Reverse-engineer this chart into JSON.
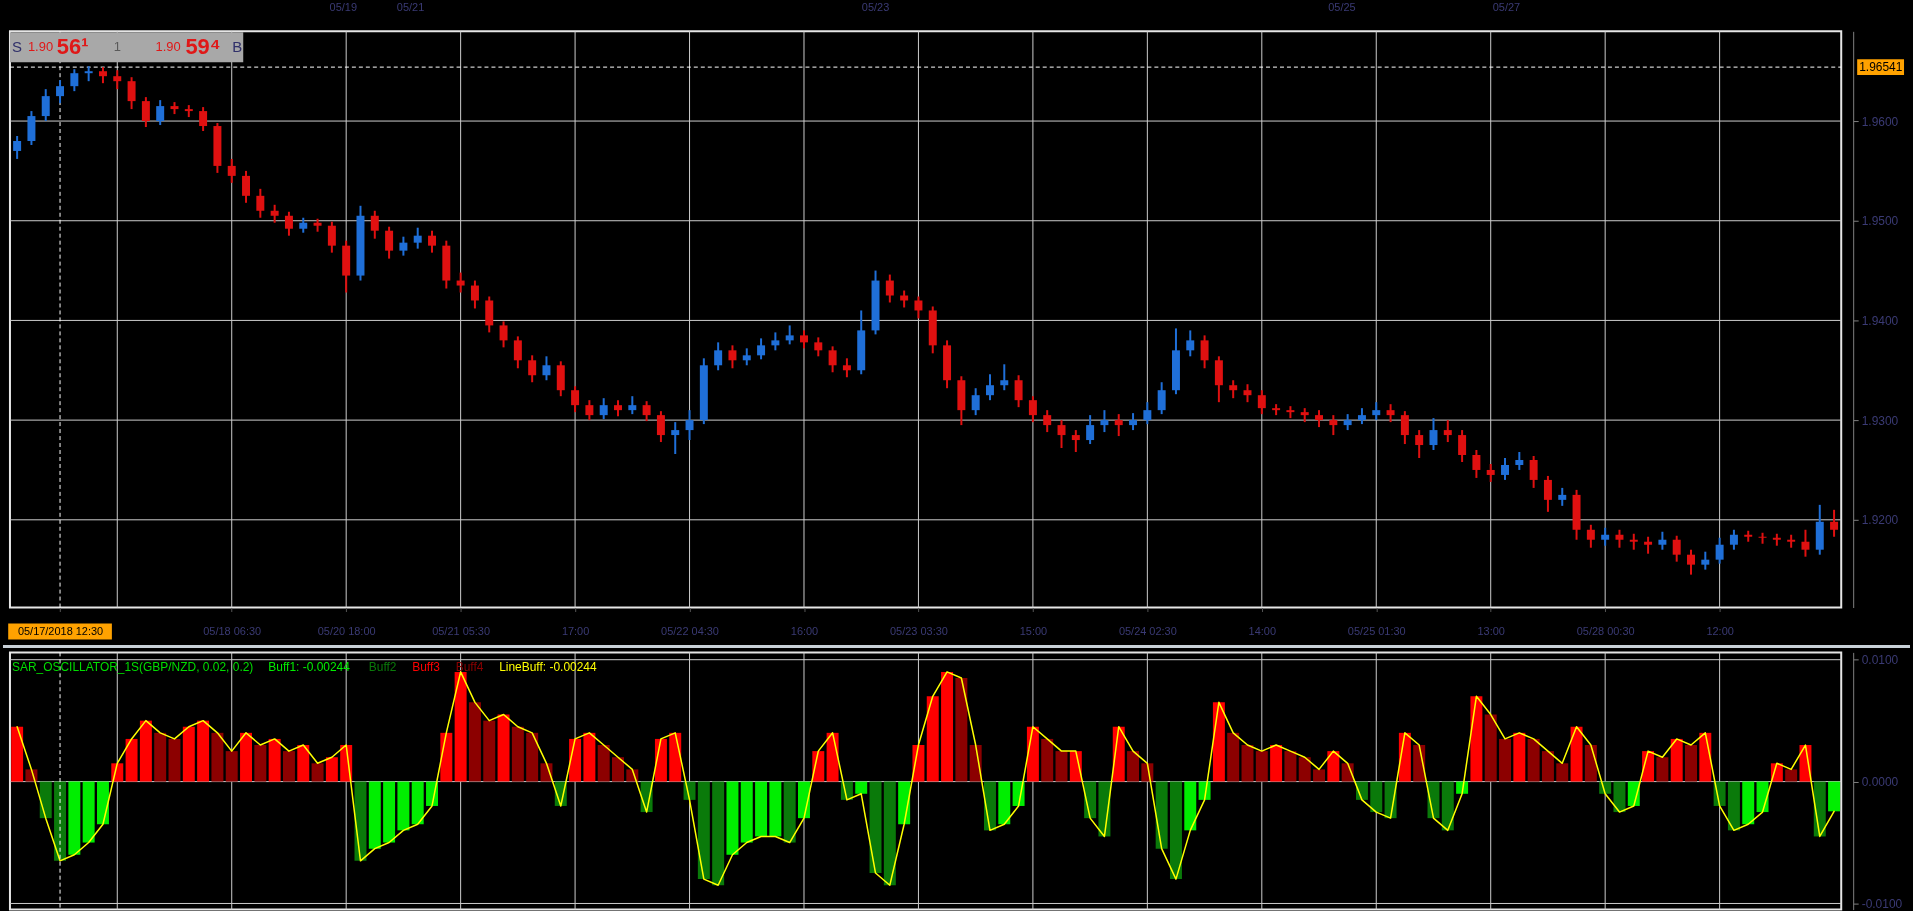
{
  "chart_data": [
    {
      "type": "candlestick",
      "categories": [
        null,
        null,
        null,
        "05/17/2018 12:30",
        null,
        null,
        null,
        null,
        null,
        null,
        null,
        null,
        null,
        null,
        null,
        "05/18 06:30",
        null,
        null,
        null,
        null,
        null,
        null,
        null,
        "05/20 18:00",
        null,
        null,
        null,
        null,
        null,
        null,
        null,
        "05/21 05:30",
        null,
        null,
        null,
        null,
        null,
        null,
        null,
        "17:00",
        null,
        null,
        null,
        null,
        null,
        null,
        null,
        "05/22 04:30",
        null,
        null,
        null,
        null,
        null,
        null,
        null,
        "16:00",
        null,
        null,
        null,
        null,
        null,
        null,
        null,
        "05/23 03:30",
        null,
        null,
        null,
        null,
        null,
        null,
        null,
        "15:00",
        null,
        null,
        null,
        null,
        null,
        null,
        null,
        "05/24 02:30",
        null,
        null,
        null,
        null,
        null,
        null,
        null,
        "14:00",
        null,
        null,
        null,
        null,
        null,
        null,
        null,
        "05/25 01:30",
        null,
        null,
        null,
        null,
        null,
        null,
        null,
        "13:00",
        null,
        null,
        null,
        null,
        null,
        null,
        null,
        "05/28 00:30",
        null,
        null,
        null,
        null,
        null,
        null,
        null,
        "12:00",
        null,
        null,
        null,
        null,
        null,
        null,
        null,
        null
      ],
      "ohlc": [
        [
          1.957,
          1.9585,
          1.9562,
          1.958
        ],
        [
          1.958,
          1.961,
          1.9576,
          1.9605
        ],
        [
          1.9605,
          1.9632,
          1.96,
          1.9625
        ],
        [
          1.9625,
          1.9641,
          1.9618,
          1.9635
        ],
        [
          1.9635,
          1.9652,
          1.963,
          1.9648
        ],
        [
          1.9648,
          1.9655,
          1.964,
          1.965
        ],
        [
          1.965,
          1.9654,
          1.9638,
          1.9645
        ],
        [
          1.9645,
          1.9651,
          1.9632,
          1.964
        ],
        [
          1.964,
          1.9644,
          1.9612,
          1.962
        ],
        [
          1.962,
          1.9624,
          1.9594,
          1.96
        ],
        [
          1.96,
          1.9621,
          1.9596,
          1.9615
        ],
        [
          1.9615,
          1.9619,
          1.9607,
          1.9612
        ],
        [
          1.9612,
          1.9616,
          1.9604,
          1.961
        ],
        [
          1.961,
          1.9614,
          1.959,
          1.9595
        ],
        [
          1.9595,
          1.9598,
          1.9548,
          1.9555
        ],
        [
          1.9555,
          1.9562,
          1.9538,
          1.9545
        ],
        [
          1.9545,
          1.955,
          1.9518,
          1.9525
        ],
        [
          1.9525,
          1.9532,
          1.9503,
          1.951
        ],
        [
          1.951,
          1.9516,
          1.9498,
          1.9505
        ],
        [
          1.9505,
          1.9509,
          1.9485,
          1.9492
        ],
        [
          1.9492,
          1.9503,
          1.9488,
          1.9498
        ],
        [
          1.9498,
          1.9502,
          1.9489,
          1.9495
        ],
        [
          1.9495,
          1.9499,
          1.9468,
          1.9475
        ],
        [
          1.9475,
          1.948,
          1.9428,
          1.9445
        ],
        [
          1.9445,
          1.9515,
          1.944,
          1.9505
        ],
        [
          1.9505,
          1.951,
          1.9482,
          1.949
        ],
        [
          1.949,
          1.9494,
          1.9462,
          1.947
        ],
        [
          1.947,
          1.9484,
          1.9465,
          1.9478
        ],
        [
          1.9478,
          1.9493,
          1.9472,
          1.9485
        ],
        [
          1.9485,
          1.949,
          1.9468,
          1.9475
        ],
        [
          1.9475,
          1.948,
          1.9432,
          1.944
        ],
        [
          1.944,
          1.9448,
          1.9428,
          1.9435
        ],
        [
          1.9435,
          1.944,
          1.9412,
          1.942
        ],
        [
          1.942,
          1.9424,
          1.9388,
          1.9395
        ],
        [
          1.9395,
          1.9399,
          1.9373,
          1.938
        ],
        [
          1.938,
          1.9384,
          1.9352,
          1.936
        ],
        [
          1.936,
          1.9365,
          1.9338,
          1.9345
        ],
        [
          1.9345,
          1.9364,
          1.934,
          1.9355
        ],
        [
          1.9355,
          1.9359,
          1.9324,
          1.933
        ],
        [
          1.933,
          1.9334,
          1.9308,
          1.9315
        ],
        [
          1.9315,
          1.932,
          1.93,
          1.9305
        ],
        [
          1.9305,
          1.9322,
          1.9301,
          1.9315
        ],
        [
          1.9315,
          1.932,
          1.9304,
          1.931
        ],
        [
          1.931,
          1.9324,
          1.9306,
          1.9315
        ],
        [
          1.9315,
          1.9319,
          1.9299,
          1.9305
        ],
        [
          1.9305,
          1.9309,
          1.9278,
          1.9285
        ],
        [
          1.9285,
          1.9298,
          1.9266,
          1.929
        ],
        [
          1.929,
          1.931,
          1.928,
          1.93
        ],
        [
          1.93,
          1.9362,
          1.9296,
          1.9355
        ],
        [
          1.9355,
          1.9378,
          1.935,
          1.937
        ],
        [
          1.937,
          1.9375,
          1.9352,
          1.936
        ],
        [
          1.936,
          1.9372,
          1.9355,
          1.9365
        ],
        [
          1.9365,
          1.9382,
          1.9361,
          1.9375
        ],
        [
          1.9375,
          1.9388,
          1.937,
          1.938
        ],
        [
          1.938,
          1.9395,
          1.9376,
          1.9385
        ],
        [
          1.9385,
          1.939,
          1.9372,
          1.9378
        ],
        [
          1.9378,
          1.9383,
          1.9364,
          1.937
        ],
        [
          1.937,
          1.9374,
          1.9348,
          1.9355
        ],
        [
          1.9355,
          1.9362,
          1.9343,
          1.935
        ],
        [
          1.935,
          1.941,
          1.9346,
          1.939
        ],
        [
          1.939,
          1.945,
          1.9386,
          1.944
        ],
        [
          1.944,
          1.9446,
          1.9418,
          1.9425
        ],
        [
          1.9425,
          1.943,
          1.9413,
          1.942
        ],
        [
          1.942,
          1.9424,
          1.9402,
          1.941
        ],
        [
          1.941,
          1.9414,
          1.9367,
          1.9375
        ],
        [
          1.9375,
          1.938,
          1.9332,
          1.934
        ],
        [
          1.934,
          1.9344,
          1.9295,
          1.931
        ],
        [
          1.931,
          1.9332,
          1.9305,
          1.9325
        ],
        [
          1.9325,
          1.9346,
          1.932,
          1.9335
        ],
        [
          1.9335,
          1.9356,
          1.933,
          1.934
        ],
        [
          1.934,
          1.9345,
          1.9313,
          1.932
        ],
        [
          1.932,
          1.9324,
          1.9298,
          1.9305
        ],
        [
          1.9305,
          1.931,
          1.9288,
          1.9295
        ],
        [
          1.9295,
          1.93,
          1.9272,
          1.9285
        ],
        [
          1.9285,
          1.929,
          1.9268,
          1.928
        ],
        [
          1.928,
          1.9305,
          1.9276,
          1.9295
        ],
        [
          1.9295,
          1.931,
          1.9288,
          1.93
        ],
        [
          1.93,
          1.9306,
          1.9284,
          1.9295
        ],
        [
          1.9295,
          1.9307,
          1.929,
          1.93
        ],
        [
          1.93,
          1.9318,
          1.9296,
          1.931
        ],
        [
          1.931,
          1.9338,
          1.9306,
          1.933
        ],
        [
          1.933,
          1.9392,
          1.9326,
          1.937
        ],
        [
          1.937,
          1.939,
          1.9364,
          1.938
        ],
        [
          1.938,
          1.9385,
          1.9352,
          1.936
        ],
        [
          1.936,
          1.9364,
          1.9318,
          1.9335
        ],
        [
          1.9335,
          1.934,
          1.9322,
          1.933
        ],
        [
          1.933,
          1.9336,
          1.9318,
          1.9325
        ],
        [
          1.9325,
          1.933,
          1.9306,
          1.9312
        ],
        [
          1.9312,
          1.9316,
          1.9305,
          1.931
        ],
        [
          1.931,
          1.9314,
          1.9302,
          1.9308
        ],
        [
          1.9308,
          1.9312,
          1.9298,
          1.9305
        ],
        [
          1.9305,
          1.931,
          1.9293,
          1.93
        ],
        [
          1.93,
          1.9305,
          1.9285,
          1.9295
        ],
        [
          1.9295,
          1.9306,
          1.929,
          1.93
        ],
        [
          1.93,
          1.9312,
          1.9296,
          1.9305
        ],
        [
          1.9305,
          1.9318,
          1.93,
          1.931
        ],
        [
          1.931,
          1.9316,
          1.9298,
          1.9305
        ],
        [
          1.9305,
          1.9309,
          1.9276,
          1.9285
        ],
        [
          1.9285,
          1.929,
          1.9262,
          1.9275
        ],
        [
          1.9275,
          1.9302,
          1.927,
          1.929
        ],
        [
          1.929,
          1.93,
          1.9278,
          1.9285
        ],
        [
          1.9285,
          1.929,
          1.9258,
          1.9265
        ],
        [
          1.9265,
          1.927,
          1.9242,
          1.925
        ],
        [
          1.925,
          1.9256,
          1.9238,
          1.9245
        ],
        [
          1.9245,
          1.9262,
          1.924,
          1.9255
        ],
        [
          1.9255,
          1.9268,
          1.925,
          1.926
        ],
        [
          1.926,
          1.9264,
          1.9232,
          1.924
        ],
        [
          1.924,
          1.9244,
          1.9208,
          1.922
        ],
        [
          1.922,
          1.9232,
          1.9214,
          1.9225
        ],
        [
          1.9225,
          1.923,
          1.918,
          1.919
        ],
        [
          1.919,
          1.9195,
          1.9172,
          1.918
        ],
        [
          1.918,
          1.9192,
          1.9174,
          1.9185
        ],
        [
          1.9185,
          1.919,
          1.9172,
          1.918
        ],
        [
          1.918,
          1.9186,
          1.917,
          1.9178
        ],
        [
          1.9178,
          1.9183,
          1.9166,
          1.9175
        ],
        [
          1.9175,
          1.9188,
          1.917,
          1.918
        ],
        [
          1.918,
          1.9184,
          1.9158,
          1.9165
        ],
        [
          1.9165,
          1.917,
          1.9145,
          1.9155
        ],
        [
          1.9155,
          1.9168,
          1.915,
          1.916
        ],
        [
          1.916,
          1.9182,
          1.9156,
          1.9175
        ],
        [
          1.9175,
          1.919,
          1.917,
          1.9185
        ],
        [
          1.9185,
          1.9189,
          1.9178,
          1.9183
        ],
        [
          1.9183,
          1.9187,
          1.9176,
          1.9182
        ],
        [
          1.9182,
          1.9186,
          1.9174,
          1.918
        ],
        [
          1.918,
          1.9185,
          1.9172,
          1.9178
        ],
        [
          1.9178,
          1.919,
          1.9163,
          1.917
        ],
        [
          1.917,
          1.9215,
          1.9165,
          1.9198
        ],
        [
          1.9198,
          1.921,
          1.9183,
          1.919
        ]
      ],
      "colors": [
        "#1f6fd8",
        "#1f6fd8",
        "#1f6fd8",
        "#1f6fd8",
        "#1f6fd8",
        "#1f6fd8",
        "#e01010",
        "#e01010",
        "#e01010",
        "#e01010",
        "#1f6fd8",
        "#e01010",
        "#e01010",
        "#e01010",
        "#e01010",
        "#e01010",
        "#e01010",
        "#e01010",
        "#e01010",
        "#e01010",
        "#1f6fd8",
        "#e01010",
        "#e01010",
        "#e01010",
        "#1f6fd8",
        "#e01010",
        "#e01010",
        "#1f6fd8",
        "#1f6fd8",
        "#e01010",
        "#e01010",
        "#e01010",
        "#e01010",
        "#e01010",
        "#e01010",
        "#e01010",
        "#e01010",
        "#1f6fd8",
        "#e01010",
        "#e01010",
        "#e01010",
        "#1f6fd8",
        "#e01010",
        "#1f6fd8",
        "#e01010",
        "#e01010",
        "#1f6fd8",
        "#1f6fd8",
        "#1f6fd8",
        "#1f6fd8",
        "#e01010",
        "#1f6fd8",
        "#1f6fd8",
        "#1f6fd8",
        "#1f6fd8",
        "#e01010",
        "#e01010",
        "#e01010",
        "#e01010",
        "#1f6fd8",
        "#1f6fd8",
        "#e01010",
        "#e01010",
        "#e01010",
        "#e01010",
        "#e01010",
        "#e01010",
        "#1f6fd8",
        "#1f6fd8",
        "#1f6fd8",
        "#e01010",
        "#e01010",
        "#e01010",
        "#e01010",
        "#e01010",
        "#1f6fd8",
        "#1f6fd8",
        "#e01010",
        "#1f6fd8",
        "#1f6fd8",
        "#1f6fd8",
        "#1f6fd8",
        "#1f6fd8",
        "#e01010",
        "#e01010",
        "#e01010",
        "#e01010",
        "#e01010",
        "#e01010",
        "#e01010",
        "#e01010",
        "#e01010",
        "#e01010",
        "#1f6fd8",
        "#1f6fd8",
        "#1f6fd8",
        "#e01010",
        "#e01010",
        "#e01010",
        "#1f6fd8",
        "#e01010",
        "#e01010",
        "#e01010",
        "#e01010",
        "#1f6fd8",
        "#1f6fd8",
        "#e01010",
        "#e01010",
        "#1f6fd8",
        "#e01010",
        "#e01010",
        "#1f6fd8",
        "#e01010",
        "#e01010",
        "#e01010",
        "#1f6fd8",
        "#e01010",
        "#e01010",
        "#1f6fd8",
        "#1f6fd8",
        "#1f6fd8",
        "#e01010",
        "#e01010",
        "#e01010",
        "#e01010",
        "#e01010",
        "#1f6fd8",
        "#e01010"
      ],
      "ylim": [
        1.9112,
        1.969
      ],
      "yticks": [
        {
          "value": 1.92,
          "label": "1.9200"
        },
        {
          "value": 1.93,
          "label": "1.9300"
        },
        {
          "value": 1.94,
          "label": "1.9400"
        },
        {
          "value": 1.95,
          "label": "1.9500"
        },
        {
          "value": 1.96,
          "label": "1.9600"
        }
      ],
      "grid": true,
      "ref_lines": [
        {
          "axis": "y",
          "value": 1.96541,
          "label": "1.96541",
          "color": "#ffffff",
          "line_style": "dashed"
        },
        {
          "axis": "x",
          "value": "05/17/2018 12:30",
          "color": "#ffffff",
          "line_style": "dashed"
        }
      ],
      "annotations": [
        "S",
        "1.90",
        "56¹",
        "1",
        "1.90",
        "59⁴",
        "B",
        "05/19",
        "05/21",
        "05/23",
        "05/25",
        "05/27"
      ]
    },
    {
      "type": "bar",
      "title": "SAR_OSCILLATOR_1S(GBP/NZD, 0.02, 0.2)",
      "categories": [
        null,
        null,
        null,
        "05/17/2018 12:30",
        null,
        null,
        null,
        null,
        null,
        null,
        null,
        null,
        null,
        null,
        null,
        "05/18 06:30",
        null,
        null,
        null,
        null,
        null,
        null,
        null,
        "05/20 18:00",
        null,
        null,
        null,
        null,
        null,
        null,
        null,
        "05/21 05:30",
        null,
        null,
        null,
        null,
        null,
        null,
        null,
        "17:00",
        null,
        null,
        null,
        null,
        null,
        null,
        null,
        "05/22 04:30",
        null,
        null,
        null,
        null,
        null,
        null,
        null,
        "16:00",
        null,
        null,
        null,
        null,
        null,
        null,
        null,
        "05/23 03:30",
        null,
        null,
        null,
        null,
        null,
        null,
        null,
        "15:00",
        null,
        null,
        null,
        null,
        null,
        null,
        null,
        "05/24 02:30",
        null,
        null,
        null,
        null,
        null,
        null,
        null,
        "14:00",
        null,
        null,
        null,
        null,
        null,
        null,
        null,
        "05/25 01:30",
        null,
        null,
        null,
        null,
        null,
        null,
        null,
        "13:00",
        null,
        null,
        null,
        null,
        null,
        null,
        null,
        "05/28 00:30",
        null,
        null,
        null,
        null,
        null,
        null,
        null,
        "12:00",
        null,
        null,
        null,
        null,
        null,
        null,
        null,
        null
      ],
      "series": [
        {
          "name": "Buff1: -0.00244",
          "color": "#00ee00",
          "values": [
            null,
            null,
            null,
            null,
            -0.006,
            -0.005,
            -0.0035,
            null,
            null,
            null,
            null,
            null,
            null,
            null,
            null,
            null,
            null,
            null,
            null,
            null,
            null,
            null,
            null,
            null,
            null,
            -0.0055,
            -0.005,
            -0.004,
            -0.0035,
            -0.002,
            null,
            null,
            null,
            null,
            null,
            null,
            null,
            null,
            null,
            null,
            null,
            null,
            null,
            null,
            null,
            null,
            null,
            null,
            null,
            null,
            -0.006,
            -0.005,
            -0.0045,
            -0.0045,
            null,
            -0.003,
            null,
            null,
            null,
            -0.001,
            null,
            null,
            -0.0035,
            null,
            null,
            null,
            null,
            null,
            null,
            -0.0035,
            -0.002,
            null,
            null,
            null,
            null,
            null,
            null,
            null,
            null,
            null,
            null,
            null,
            -0.004,
            -0.0015,
            null,
            null,
            null,
            null,
            null,
            null,
            null,
            null,
            null,
            null,
            null,
            null,
            null,
            null,
            null,
            null,
            null,
            -0.001,
            null,
            null,
            null,
            null,
            null,
            null,
            null,
            null,
            null,
            null,
            null,
            -0.002,
            null,
            null,
            null,
            null,
            null,
            null,
            null,
            -0.0035,
            -0.0025,
            null,
            null,
            null,
            null,
            -0.00244
          ]
        },
        {
          "name": "Buff2",
          "color": "#0a7a0a",
          "values": [
            null,
            null,
            -0.003,
            -0.0065,
            null,
            null,
            null,
            null,
            null,
            null,
            null,
            null,
            null,
            null,
            null,
            null,
            null,
            null,
            null,
            null,
            null,
            null,
            null,
            null,
            -0.0065,
            null,
            null,
            null,
            null,
            null,
            null,
            null,
            null,
            null,
            null,
            null,
            null,
            null,
            -0.002,
            null,
            null,
            null,
            null,
            null,
            -0.0025,
            null,
            null,
            -0.0015,
            -0.008,
            -0.0085,
            null,
            null,
            null,
            null,
            -0.005,
            null,
            null,
            null,
            -0.0015,
            null,
            -0.0075,
            -0.0085,
            null,
            null,
            null,
            null,
            null,
            null,
            -0.004,
            null,
            null,
            null,
            null,
            null,
            null,
            -0.003,
            -0.0045,
            null,
            null,
            null,
            -0.0055,
            -0.008,
            null,
            null,
            null,
            null,
            null,
            null,
            null,
            null,
            null,
            null,
            null,
            null,
            -0.0015,
            -0.0025,
            -0.003,
            null,
            null,
            -0.003,
            -0.004,
            null,
            null,
            null,
            null,
            null,
            null,
            null,
            null,
            null,
            null,
            -0.001,
            -0.0025,
            null,
            null,
            null,
            null,
            null,
            null,
            -0.002,
            -0.004,
            null,
            null,
            null,
            null,
            null,
            -0.0045,
            null
          ]
        },
        {
          "name": "Buff3",
          "color": "#ff0000",
          "values": [
            0.0045,
            null,
            null,
            null,
            null,
            null,
            null,
            0.0015,
            0.0035,
            0.005,
            null,
            null,
            0.0045,
            0.005,
            null,
            null,
            0.004,
            null,
            0.0035,
            null,
            0.003,
            null,
            0.002,
            0.003,
            null,
            null,
            null,
            null,
            null,
            null,
            0.004,
            0.009,
            null,
            null,
            0.0055,
            null,
            null,
            null,
            null,
            0.0035,
            0.004,
            null,
            null,
            null,
            null,
            0.0035,
            0.004,
            null,
            null,
            null,
            null,
            null,
            null,
            null,
            null,
            null,
            0.0025,
            0.004,
            null,
            null,
            null,
            null,
            null,
            0.003,
            0.007,
            0.009,
            null,
            null,
            null,
            null,
            null,
            0.0045,
            null,
            null,
            0.0025,
            null,
            null,
            0.0045,
            null,
            null,
            null,
            null,
            null,
            null,
            0.0065,
            null,
            null,
            null,
            0.003,
            null,
            null,
            null,
            0.0025,
            null,
            null,
            null,
            null,
            0.004,
            null,
            null,
            null,
            null,
            0.007,
            null,
            null,
            0.004,
            null,
            null,
            null,
            0.0045,
            null,
            null,
            null,
            null,
            0.0025,
            null,
            0.0035,
            null,
            0.004,
            null,
            null,
            null,
            null,
            0.0015,
            null,
            0.003,
            null,
            null
          ]
        },
        {
          "name": "Buff4",
          "color": "#8c0000",
          "values": [
            null,
            0.001,
            null,
            null,
            null,
            null,
            null,
            null,
            null,
            null,
            0.004,
            0.0035,
            null,
            null,
            0.004,
            0.0025,
            null,
            0.003,
            null,
            0.0025,
            null,
            0.0015,
            null,
            null,
            null,
            null,
            null,
            null,
            null,
            null,
            null,
            null,
            0.0065,
            0.005,
            null,
            0.0045,
            0.004,
            0.0015,
            null,
            null,
            null,
            0.003,
            0.002,
            0.001,
            null,
            null,
            null,
            null,
            null,
            null,
            null,
            null,
            null,
            null,
            null,
            null,
            null,
            null,
            null,
            null,
            null,
            null,
            null,
            null,
            null,
            null,
            0.0085,
            0.003,
            null,
            null,
            null,
            null,
            0.0035,
            0.0025,
            null,
            null,
            null,
            null,
            0.0025,
            0.0015,
            null,
            null,
            null,
            null,
            null,
            0.004,
            0.003,
            0.0025,
            null,
            0.0025,
            0.002,
            0.001,
            null,
            0.0015,
            null,
            null,
            null,
            null,
            0.003,
            null,
            null,
            null,
            null,
            0.0055,
            0.0035,
            null,
            0.0035,
            0.0025,
            0.0015,
            null,
            0.003,
            null,
            null,
            null,
            null,
            0.002,
            null,
            0.003,
            null,
            null,
            null,
            null,
            null,
            null,
            0.001,
            null,
            null,
            null
          ]
        },
        {
          "name": "LineBuff: -0.00244",
          "color": "#ffff00",
          "type": "line",
          "values": [
            0.0045,
            0.001,
            -0.003,
            -0.0065,
            -0.006,
            -0.005,
            -0.0035,
            0.0015,
            0.0035,
            0.005,
            0.004,
            0.0035,
            0.0045,
            0.005,
            0.004,
            0.0025,
            0.004,
            0.003,
            0.0035,
            0.0025,
            0.003,
            0.0015,
            0.002,
            0.003,
            -0.0065,
            -0.0055,
            -0.005,
            -0.004,
            -0.0035,
            -0.002,
            0.004,
            0.009,
            0.0065,
            0.005,
            0.0055,
            0.0045,
            0.004,
            0.0015,
            -0.002,
            0.0035,
            0.004,
            0.003,
            0.002,
            0.001,
            -0.0025,
            0.0035,
            0.004,
            -0.0015,
            -0.008,
            -0.0085,
            -0.006,
            -0.005,
            -0.0045,
            -0.0045,
            -0.005,
            -0.003,
            0.0025,
            0.004,
            -0.0015,
            -0.001,
            -0.0075,
            -0.0085,
            -0.0035,
            0.003,
            0.007,
            0.009,
            0.0085,
            0.003,
            -0.004,
            -0.0035,
            -0.002,
            0.0045,
            0.0035,
            0.0025,
            0.0025,
            -0.003,
            -0.0045,
            0.0045,
            0.0025,
            0.0015,
            -0.0055,
            -0.008,
            -0.004,
            -0.0015,
            0.0065,
            0.004,
            0.003,
            0.0025,
            0.003,
            0.0025,
            0.002,
            0.001,
            0.0025,
            0.0015,
            -0.0015,
            -0.0025,
            -0.003,
            0.004,
            0.003,
            -0.003,
            -0.004,
            -0.001,
            0.007,
            0.0055,
            0.0035,
            0.004,
            0.0035,
            0.0025,
            0.0015,
            0.0045,
            0.003,
            -0.001,
            -0.0025,
            -0.002,
            0.0025,
            0.002,
            0.0035,
            0.003,
            0.004,
            -0.002,
            -0.004,
            -0.0035,
            -0.0025,
            0.0015,
            0.001,
            0.003,
            -0.0045,
            -0.00244
          ]
        }
      ],
      "ylim": [
        -0.0105,
        0.0106
      ],
      "yticks": [
        {
          "value": 0.01,
          "label": "0.0100"
        },
        {
          "value": 0,
          "label": "0.0000"
        },
        {
          "value": -0.01,
          "label": "-0.0100"
        }
      ],
      "grid": true,
      "legend": "top left",
      "tick_labels": "y",
      "ref_lines": [
        {
          "axis": "x",
          "value": "05/17/2018 12:30",
          "color": "#ffffff",
          "line_style": "dashed"
        }
      ]
    }
  ]
}
